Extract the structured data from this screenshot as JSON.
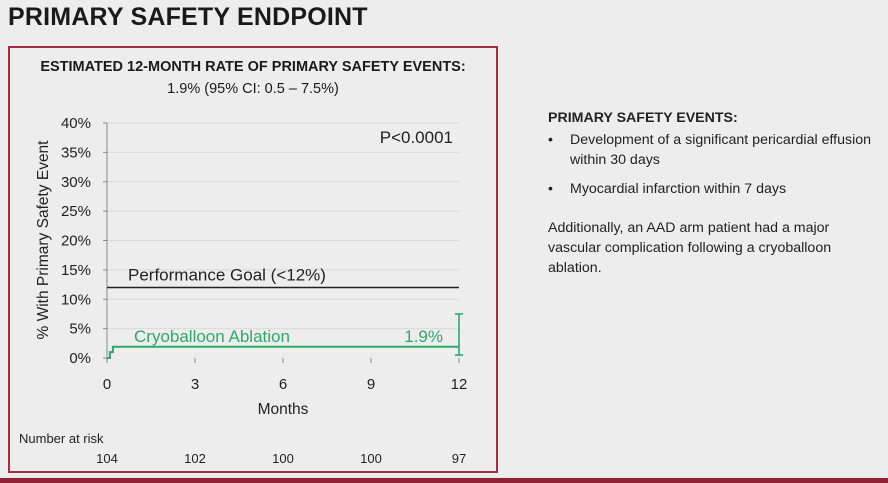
{
  "slide_title": "PRIMARY SAFETY ENDPOINT",
  "panel": {
    "estimate_heading": "ESTIMATED 12-MONTH RATE OF PRIMARY SAFETY EVENTS:",
    "estimate_value": "1.9% (95% CI: 0.5 – 7.5%)"
  },
  "chart_data": {
    "type": "line",
    "ylabel": "% With Primary Safety Event",
    "xlabel": "Months",
    "xlim": [
      0,
      12
    ],
    "ylim": [
      0,
      40
    ],
    "x_ticks": [
      0,
      3,
      6,
      9,
      12
    ],
    "x_tick_labels": [
      "0",
      "3",
      "6",
      "9",
      "12"
    ],
    "y_ticks": [
      0,
      5,
      10,
      15,
      20,
      25,
      30,
      35,
      40
    ],
    "y_tick_labels": [
      "0%",
      "5%",
      "10%",
      "15%",
      "20%",
      "25%",
      "30%",
      "35%",
      "40%"
    ],
    "grid": true,
    "p_value": "P<0.0001",
    "reference_line": {
      "label": "Performance Goal (<12%)",
      "value": 12,
      "color": "#222222"
    },
    "series": [
      {
        "name": "Cryoballoon Ablation",
        "color": "#2fa86b",
        "x": [
          0,
          0.1,
          0.1,
          0.2,
          0.2,
          12
        ],
        "y": [
          0,
          0,
          1.0,
          1.0,
          1.9,
          1.9
        ],
        "end_label": "1.9%",
        "ci_at_end": [
          0.5,
          7.5
        ]
      }
    ],
    "number_at_risk": {
      "label": "Number at risk",
      "months": [
        0,
        3,
        6,
        9,
        12
      ],
      "values": [
        "104",
        "102",
        "100",
        "100",
        "97"
      ]
    }
  },
  "right_panel": {
    "heading": "PRIMARY SAFETY EVENTS:",
    "bullets": [
      "Development of a significant pericardial effusion within 30 days",
      "Myocardial infarction within 7 days"
    ],
    "bullet_symbol": "•",
    "note": "Additionally, an AAD arm patient had a major vascular complication following a cryoballoon ablation."
  },
  "colors": {
    "frame": "#a3303c",
    "bottom_bar": "#8e2233",
    "background": "#ededed"
  }
}
